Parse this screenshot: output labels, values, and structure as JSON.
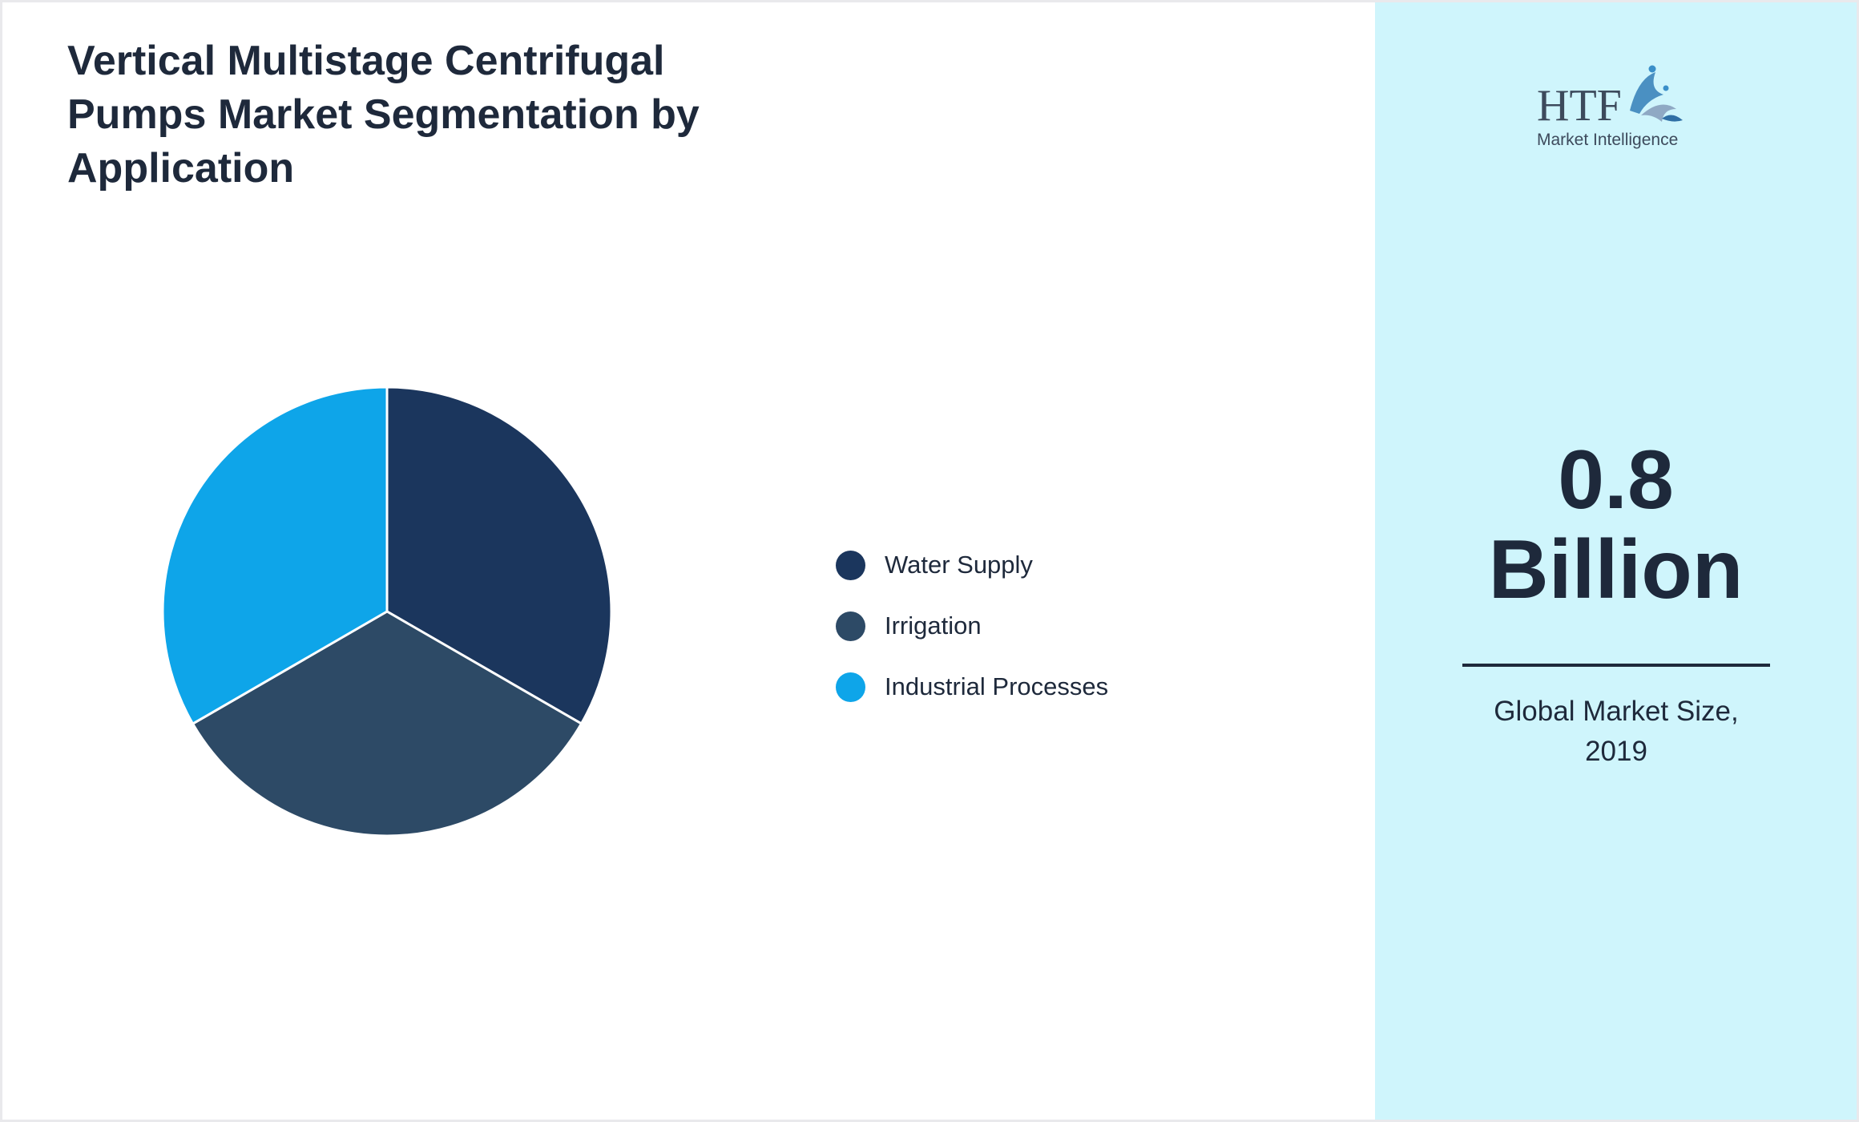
{
  "title": "Vertical Multistage Centrifugal Pumps Market Segmentation by Application",
  "chart_data": {
    "type": "pie",
    "title": "Vertical Multistage Centrifugal Pumps Market Segmentation by Application",
    "categories": [
      "Water Supply",
      "Irrigation",
      "Industrial Processes"
    ],
    "values": [
      33.33,
      33.33,
      33.34
    ],
    "colors": [
      "#1b365d",
      "#2d4a66",
      "#0ea5e9"
    ],
    "legend_position": "right"
  },
  "legend": {
    "items": [
      {
        "label": "Water Supply",
        "color": "#1b365d"
      },
      {
        "label": "Irrigation",
        "color": "#2d4a66"
      },
      {
        "label": "Industrial Processes",
        "color": "#0ea5e9"
      }
    ]
  },
  "sidebar": {
    "logo_text": "HTF",
    "logo_subtext": "Market Intelligence",
    "value_line1": "0.8",
    "value_line2": "Billion",
    "caption_line1": "Global Market Size,",
    "caption_line2": "2019"
  },
  "colors": {
    "sidebar_bg": "#cff5fc",
    "text": "#1e293b"
  }
}
